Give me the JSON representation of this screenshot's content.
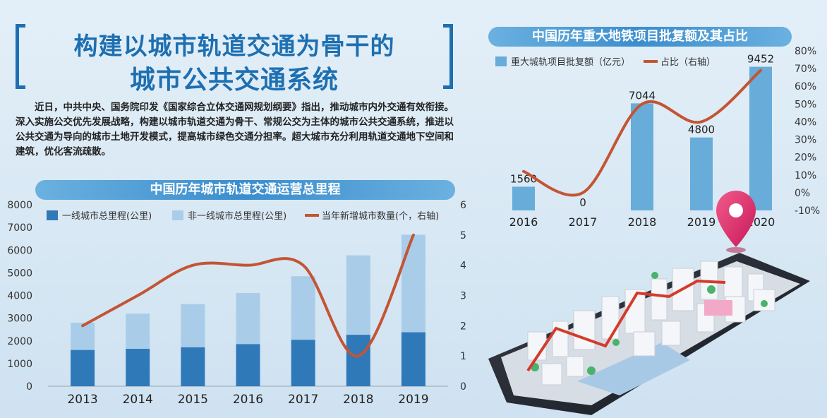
{
  "header": {
    "title_line1": "构建以城市轨道交通为骨干的",
    "title_line2": "城市公共交通系统",
    "intro": "近日，中共中央、国务院印发《国家综合立体交通网规划纲要》指出，推动城市内外交通有效衔接。深入实施公交优先发展战略，构建以城市轨道交通为骨干、常规公交为主体的城市公共交通系统，推进以公共交通为导向的城市土地开发模式，提高城市绿色交通分担率。超大城市充分利用轨道交通地下空间和建筑，优化客流疏散。"
  },
  "chart_data": [
    {
      "type": "bar",
      "title": "中国历年城市轨道交通运营总里程",
      "stacked": true,
      "categories": [
        "2013",
        "2014",
        "2015",
        "2016",
        "2017",
        "2018",
        "2019"
      ],
      "series": [
        {
          "name": "一线城市总里程(公里)",
          "type": "bar",
          "axis": "left",
          "color": "#2f79b9",
          "values": [
            1600,
            1650,
            1720,
            1860,
            2050,
            2270,
            2380
          ]
        },
        {
          "name": "非一线城市总里程(公里)",
          "type": "bar",
          "axis": "left",
          "color": "#a9cde9",
          "values": [
            1200,
            1550,
            1900,
            2250,
            2800,
            3500,
            4300
          ]
        },
        {
          "name": "当年新增城市数量(个，右轴)",
          "type": "line",
          "axis": "right",
          "color": "#c45433",
          "values": [
            2,
            3,
            4,
            4,
            4,
            1,
            5
          ]
        }
      ],
      "y_left": {
        "ticks": [
          "0",
          "1000",
          "2000",
          "3000",
          "4000",
          "5000",
          "6000",
          "7000",
          "8000"
        ],
        "ylim": [
          0,
          8000
        ]
      },
      "y_right": {
        "ticks": [
          "0",
          "1",
          "2",
          "3",
          "4",
          "5",
          "6"
        ],
        "ylim": [
          0,
          6
        ]
      },
      "legend": "top-left"
    },
    {
      "type": "bar",
      "title": "中国历年重大地铁项目批复额及其占比",
      "categories": [
        "2016",
        "2017",
        "2018",
        "2019",
        "2020"
      ],
      "series": [
        {
          "name": "重大城轨项目批复额（亿元）",
          "type": "bar",
          "axis": "left",
          "color": "#68acd9",
          "values": [
            1560,
            0,
            7044,
            4800,
            9452
          ],
          "labels": [
            "1560",
            "0",
            "7044",
            "4800",
            "9452"
          ]
        },
        {
          "name": "占比（右轴）",
          "type": "line",
          "axis": "right",
          "color": "#c45433",
          "values": [
            12,
            0,
            50,
            40,
            69
          ]
        }
      ],
      "y_right": {
        "ticks": [
          "80%",
          "70%",
          "60%",
          "50%",
          "40%",
          "30%",
          "20%",
          "10%",
          "0%",
          "-10%"
        ],
        "ylim": [
          -10,
          80
        ]
      },
      "legend": "top-left"
    }
  ]
}
